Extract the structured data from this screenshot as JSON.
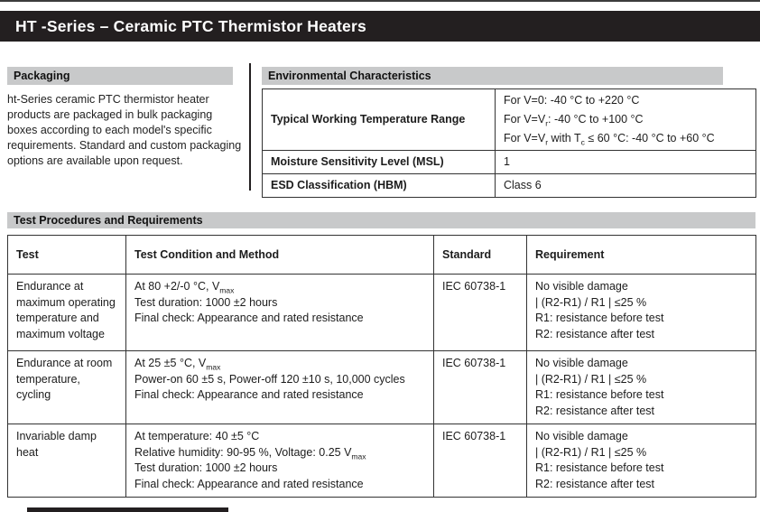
{
  "page": {
    "title": "HT -Series – Ceramic PTC Thermistor Heaters"
  },
  "packaging": {
    "heading": "Packaging",
    "body": "ht-Series ceramic PTC thermistor heater products are packaged in bulk packaging boxes according to each model's specific requirements. Standard and custom packaging options are available upon request."
  },
  "environmental": {
    "heading": "Environmental Characteristics",
    "rows": [
      {
        "label": "Typical Working Temperature Range",
        "value_lines": [
          "For V=0: -40 °C to +220 °C",
          "For V=V~r~: -40 °C to +100 °C",
          "For V=V~r~ with T~c~ ≤ 60 °C: -40 °C to +60 °C"
        ]
      },
      {
        "label": "Moisture Sensitivity Level (MSL)",
        "value": "1"
      },
      {
        "label": "ESD Classification (HBM)",
        "value": "Class 6"
      }
    ]
  },
  "tests": {
    "heading": "Test Procedures and Requirements",
    "columns": [
      "Test",
      "Test Condition and Method",
      "Standard",
      "Requirement"
    ],
    "rows": [
      {
        "test": "Endurance at maximum operating temperature and maximum voltage",
        "condition_lines": [
          "At 80 +2/-0 °C, V~max~",
          "Test duration: 1000 ±2 hours",
          "Final check: Appearance and rated resistance"
        ],
        "standard": "IEC 60738-1",
        "requirement_lines": [
          "No visible damage",
          "| (R2-R1) / R1 | ≤25 %",
          "R1: resistance before test",
          "R2: resistance after test"
        ]
      },
      {
        "test": "Endurance at room temperature, cycling",
        "condition_lines": [
          "At 25 ±5 °C, V~max~",
          "Power-on 60 ±5 s, Power-off 120 ±10 s, 10,000 cycles",
          "Final check: Appearance and rated resistance"
        ],
        "standard": "IEC 60738-1",
        "requirement_lines": [
          "No visible damage",
          "| (R2-R1) / R1 | ≤25 %",
          "R1: resistance before test",
          "R2: resistance after test"
        ]
      },
      {
        "test": "Invariable damp heat",
        "condition_lines": [
          "At temperature: 40 ±5 °C",
          "Relative humidity: 90-95 %, Voltage: 0.25 V~max~",
          "Test duration: 1000 ±2 hours",
          "Final check: Appearance and rated resistance"
        ],
        "standard": "IEC 60738-1",
        "requirement_lines": [
          "No visible damage",
          "| (R2-R1) / R1 | ≤25 %",
          "R1: resistance before test",
          "R2: resistance after test"
        ]
      }
    ]
  },
  "colors": {
    "header_bg": "#231f20",
    "section_bar_bg": "#c8c9ca",
    "border": "#333333"
  }
}
